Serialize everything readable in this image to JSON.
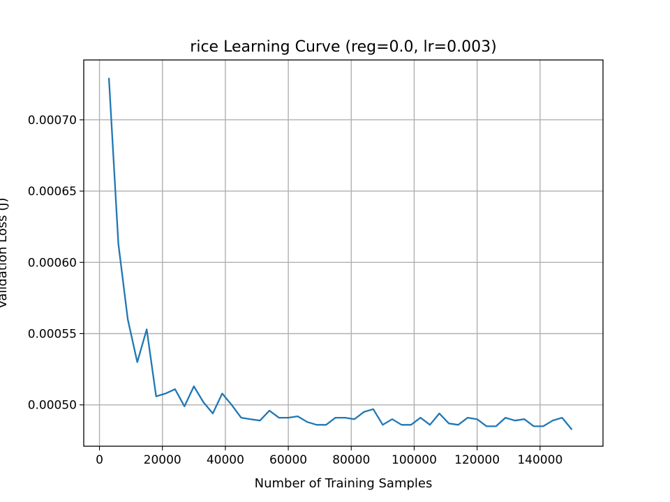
{
  "chart_data": {
    "type": "line",
    "title": "rice Learning Curve (reg=0.0, lr=0.003)",
    "xlabel": "Number of Training Samples",
    "ylabel": "Validation Loss (J)",
    "xlim": [
      -5000,
      160000
    ],
    "ylim": [
      0.000471,
      0.000742
    ],
    "grid": true,
    "color": "#1f77b4",
    "x_ticks": [
      0,
      20000,
      40000,
      60000,
      80000,
      100000,
      120000,
      140000
    ],
    "x_tick_labels": [
      "0",
      "20000",
      "40000",
      "60000",
      "80000",
      "100000",
      "120000",
      "140000"
    ],
    "y_ticks": [
      0.0005,
      0.00055,
      0.0006,
      0.00065,
      0.0007
    ],
    "y_tick_labels": [
      "0.00050",
      "0.00055",
      "0.00060",
      "0.00065",
      "0.00070"
    ],
    "series": [
      {
        "x": [
          3000,
          6000,
          9000,
          12000,
          15000,
          18000,
          21000,
          24000,
          27000,
          30000,
          33000,
          36000,
          39000,
          42000,
          45000,
          48000,
          51000,
          54000,
          57000,
          60000,
          63000,
          66000,
          69000,
          72000,
          75000,
          78000,
          81000,
          84000,
          87000,
          90000,
          93000,
          96000,
          99000,
          102000,
          105000,
          108000,
          111000,
          114000,
          117000,
          120000,
          123000,
          126000,
          129000,
          132000,
          135000,
          138000,
          141000,
          144000,
          147000,
          150000
        ],
        "y": [
          0.000729,
          0.000613,
          0.00056,
          0.00053,
          0.000553,
          0.000506,
          0.000508,
          0.000511,
          0.000499,
          0.000513,
          0.000502,
          0.000494,
          0.000508,
          0.0005,
          0.000491,
          0.00049,
          0.000489,
          0.000496,
          0.000491,
          0.000491,
          0.000492,
          0.000488,
          0.000486,
          0.000486,
          0.000491,
          0.000491,
          0.00049,
          0.000495,
          0.000497,
          0.000486,
          0.00049,
          0.000486,
          0.000486,
          0.000491,
          0.000486,
          0.000494,
          0.000487,
          0.000486,
          0.000491,
          0.00049,
          0.000485,
          0.000485,
          0.000491,
          0.000489,
          0.00049,
          0.000485,
          0.000485,
          0.000489,
          0.000491,
          0.000483
        ]
      }
    ]
  }
}
